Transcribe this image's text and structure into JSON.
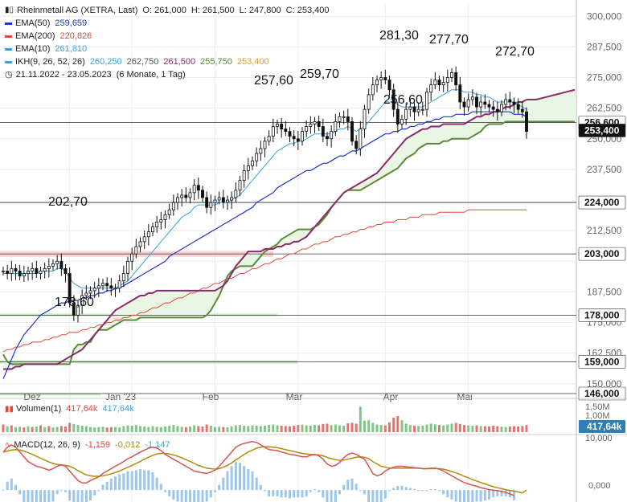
{
  "header": {
    "instrument": "Rheinmetall AG (XETRA, Last)",
    "ohlc": {
      "o": "O: 261,000",
      "h": "H: 261,500",
      "l": "L: 247,800",
      "c": "C: 253,400"
    },
    "range": "21.11.2022 - 23.05.2023",
    "period": "(6 Monate, 1 Tag)"
  },
  "indicators": [
    {
      "label": "EMA(50)",
      "value": "259,659",
      "color": "#1f36c9"
    },
    {
      "label": "EMA(200)",
      "value": "220,826",
      "color": "#e4473a"
    },
    {
      "label": "EMA(10)",
      "value": "261,810",
      "color": "#3aa0de"
    }
  ],
  "ichimoku": {
    "label": "IKH(9, 26, 52, 26)",
    "values": [
      {
        "v": "260,250",
        "color": "#3aa0de"
      },
      {
        "v": "262,750",
        "color": "#555555"
      },
      {
        "v": "261,500",
        "color": "#8b2a6b"
      },
      {
        "v": "255,750",
        "color": "#5a8a3a"
      },
      {
        "v": "253,400",
        "color": "#d7a21e"
      }
    ]
  },
  "colors": {
    "up": "#111111",
    "down": "#111111",
    "cloud_green": "#e6f4df",
    "cloud_red": "#f7dada",
    "senkouA": "#8b2a6b",
    "senkouB": "#5a8a3a",
    "chikou": "#d7a21e"
  },
  "volume": {
    "label": "Volumen(1)",
    "value1": "417,64k",
    "value2": "417,64k",
    "badge": "417,64k",
    "ticks": [
      "1,50M",
      "1,00M"
    ]
  },
  "macd": {
    "label": "MACD(12, 26, 9)",
    "v1": "-1,159",
    "v2": "-0,012",
    "v3": "-1,147",
    "ticks": [
      "10,000",
      "0,000"
    ]
  },
  "chart_data": {
    "type": "candlestick",
    "title": "Rheinmetall AG (XETRA, Last)",
    "ylim": [
      146,
      305
    ],
    "yticks": [
      "300,000",
      "287,500",
      "275,000",
      "262,500",
      "250,000",
      "237,500",
      "224,000",
      "212,500",
      "203,000",
      "187,500",
      "178,000",
      "175,000",
      "162,500",
      "159,000",
      "150,000",
      "146,000"
    ],
    "x_labels": [
      "Dez",
      "Jan '23",
      "Feb",
      "Mär",
      "Apr",
      "Mai"
    ],
    "horizontal_levels": [
      {
        "value": 256.6,
        "label": "256,600",
        "zone": false
      },
      {
        "value": 224.0,
        "label": "224,000",
        "zone": false
      },
      {
        "value": 203.0,
        "label": "203,000",
        "zone": "red"
      },
      {
        "value": 178.0,
        "label": "178,000",
        "zone": "green"
      },
      {
        "value": 159.0,
        "label": "159,000",
        "zone": "green"
      },
      {
        "value": 146.0,
        "label": "146,000",
        "zone": false
      }
    ],
    "current_price_label": "253,400",
    "annotations": [
      {
        "text": "202,70",
        "value": 202.7
      },
      {
        "text": "173,60",
        "value": 173.6
      },
      {
        "text": "257,60",
        "value": 257.6
      },
      {
        "text": "259,70",
        "value": 259.7
      },
      {
        "text": "281,30",
        "value": 281.3
      },
      {
        "text": "256,60",
        "value": 256.6
      },
      {
        "text": "277,70",
        "value": 277.7
      },
      {
        "text": "272,70",
        "value": 272.7
      }
    ],
    "close_series": [
      196,
      195,
      197,
      196,
      194,
      195,
      196,
      197,
      195,
      196,
      197,
      198,
      199,
      200,
      197,
      195,
      183,
      178,
      182,
      186,
      187,
      188,
      189,
      190,
      191,
      190,
      189,
      189,
      192,
      195,
      200,
      203,
      206,
      208,
      210,
      212,
      214,
      216,
      217,
      219,
      221,
      224,
      226,
      227,
      226,
      228,
      231,
      229,
      226,
      222,
      224,
      225,
      226,
      224,
      225,
      226,
      229,
      233,
      237,
      239,
      241,
      244,
      246,
      249,
      251,
      255,
      256,
      254,
      253,
      251,
      250,
      249,
      253,
      255,
      256,
      257,
      255,
      251,
      250,
      253,
      257,
      259,
      259,
      257,
      249,
      246,
      254,
      262,
      268,
      272,
      274,
      275,
      274,
      270,
      262,
      256,
      258,
      262,
      263,
      261,
      262,
      262,
      269,
      272,
      274,
      272,
      273,
      275,
      277,
      272,
      265,
      263,
      266,
      267,
      263,
      265,
      264,
      263,
      262,
      261,
      264,
      266,
      265,
      264,
      262,
      261,
      253
    ],
    "ema10_series": [
      195,
      195,
      195,
      195,
      195,
      195,
      195,
      195,
      195,
      196,
      196,
      196,
      196,
      197,
      197,
      196,
      193,
      191,
      190,
      189,
      189,
      189,
      189,
      189,
      189,
      189,
      189,
      189,
      190,
      191,
      192,
      194,
      196,
      198,
      200,
      202,
      204,
      206,
      208,
      210,
      212,
      214,
      216,
      218,
      219,
      220,
      222,
      223,
      223,
      223,
      223,
      223,
      224,
      224,
      224,
      225,
      226,
      227,
      229,
      231,
      233,
      235,
      237,
      239,
      241,
      243,
      245,
      246,
      247,
      248,
      248,
      249,
      249,
      250,
      251,
      252,
      252,
      252,
      252,
      252,
      253,
      254,
      254,
      255,
      254,
      253,
      254,
      255,
      257,
      259,
      261,
      263,
      265,
      265,
      265,
      264,
      263,
      263,
      263,
      263,
      263,
      263,
      264,
      265,
      266,
      267,
      268,
      269,
      270,
      270,
      270,
      269,
      269,
      269,
      268,
      268,
      267,
      267,
      266,
      265,
      265,
      265,
      265,
      265,
      264,
      263,
      262
    ],
    "ema50_series": [
      152,
      156,
      160,
      164,
      167,
      170,
      172,
      174,
      176,
      178,
      179,
      180,
      181,
      182,
      183,
      183,
      184,
      184,
      184,
      185,
      185,
      186,
      186,
      187,
      187,
      188,
      188,
      189,
      189,
      190,
      191,
      192,
      193,
      194,
      195,
      196,
      197,
      198,
      199,
      200,
      202,
      203,
      204,
      205,
      206,
      207,
      208,
      209,
      210,
      211,
      212,
      213,
      214,
      215,
      216,
      217,
      218,
      219,
      220,
      221,
      222,
      224,
      225,
      226,
      227,
      228,
      230,
      231,
      232,
      233,
      234,
      235,
      236,
      237,
      237,
      238,
      239,
      240,
      240,
      241,
      242,
      243,
      243,
      244,
      245,
      245,
      246,
      247,
      248,
      249,
      250,
      251,
      252,
      252,
      253,
      253,
      254,
      254,
      255,
      255,
      256,
      256,
      257,
      257,
      258,
      258,
      259,
      259,
      259,
      260,
      260,
      260,
      260,
      261,
      261,
      261,
      261,
      261,
      261,
      261,
      261,
      261,
      261,
      260,
      260,
      260,
      259
    ],
    "ema200_series": [
      163,
      164,
      164,
      165,
      165,
      166,
      166,
      167,
      167,
      167,
      168,
      168,
      169,
      169,
      170,
      170,
      171,
      171,
      171,
      172,
      172,
      173,
      173,
      174,
      174,
      175,
      175,
      176,
      176,
      177,
      177,
      178,
      178,
      179,
      179,
      180,
      181,
      181,
      182,
      183,
      183,
      184,
      185,
      185,
      186,
      187,
      187,
      188,
      189,
      189,
      190,
      191,
      191,
      192,
      193,
      193,
      194,
      195,
      195,
      196,
      197,
      197,
      198,
      199,
      199,
      200,
      201,
      201,
      202,
      203,
      203,
      204,
      205,
      205,
      206,
      207,
      207,
      208,
      208,
      209,
      210,
      210,
      211,
      211,
      212,
      212,
      213,
      213,
      214,
      214,
      215,
      215,
      216,
      216,
      216,
      217,
      217,
      217,
      218,
      218,
      218,
      219,
      219,
      219,
      219,
      220,
      220,
      220,
      220,
      220,
      220,
      220,
      221,
      221,
      221,
      221,
      221,
      221,
      221,
      221,
      221,
      221,
      221,
      221,
      221,
      221,
      221
    ],
    "senkouA_series": [
      156,
      156,
      156,
      157,
      157,
      158,
      158,
      158,
      158,
      158,
      158,
      158,
      158,
      158,
      159,
      160,
      161,
      162,
      163,
      164,
      166,
      168,
      170,
      172,
      174,
      176,
      178,
      180,
      181,
      182,
      183,
      184,
      185,
      186,
      186,
      187,
      187,
      188,
      188,
      188,
      188,
      188,
      188,
      188,
      188,
      188,
      188,
      188,
      188,
      188,
      188,
      188,
      189,
      190,
      192,
      195,
      198,
      200,
      202,
      204,
      204,
      204,
      204,
      205,
      205,
      205,
      206,
      206,
      207,
      207,
      208,
      208,
      209,
      210,
      212,
      214,
      216,
      218,
      220,
      222,
      224,
      226,
      228,
      229,
      230,
      231,
      232,
      233,
      234,
      235,
      236,
      238,
      240,
      242,
      244,
      246,
      248,
      250,
      251,
      252,
      253,
      254,
      254,
      255,
      255,
      255,
      256,
      256,
      256,
      256,
      256,
      256,
      257,
      258,
      259,
      259,
      260,
      260,
      261,
      261,
      262,
      263,
      263,
      264,
      265,
      265,
      266
    ],
    "senkouB_series": [
      162,
      159,
      158,
      158,
      158,
      158,
      158,
      158,
      158,
      158,
      158,
      158,
      158,
      158,
      158,
      158,
      158,
      164,
      166,
      166,
      167,
      167,
      170,
      172,
      172,
      172,
      173,
      174,
      175,
      176,
      176,
      176,
      176,
      177,
      177,
      177,
      177,
      177,
      177,
      177,
      177,
      177,
      177,
      177,
      177,
      177,
      177,
      177,
      177,
      178,
      180,
      183,
      186,
      190,
      194,
      196,
      197,
      198,
      198,
      198,
      198,
      200,
      202,
      204,
      205,
      206,
      207,
      209,
      210,
      211,
      212,
      213,
      213,
      213,
      213,
      214,
      215,
      217,
      219,
      222,
      224,
      226,
      228,
      229,
      229,
      229,
      229,
      230,
      231,
      232,
      233,
      234,
      235,
      236,
      237,
      238,
      240,
      242,
      243,
      244,
      246,
      247,
      248,
      248,
      248,
      248,
      249,
      249,
      250,
      250,
      250,
      250,
      250,
      251,
      252,
      253,
      255,
      256,
      256,
      256,
      256,
      257,
      257,
      257,
      257,
      257,
      257
    ]
  },
  "volume_data": {
    "ymax": 1.8,
    "values": [
      0.45,
      0.35,
      0.4,
      0.3,
      0.32,
      0.28,
      0.35,
      0.3,
      0.33,
      0.4,
      0.3,
      0.35,
      0.28,
      0.3,
      0.36,
      0.33,
      0.55,
      0.48,
      0.42,
      0.38,
      0.35,
      0.3,
      0.28,
      0.3,
      0.32,
      0.27,
      0.3,
      0.3,
      0.28,
      0.35,
      0.4,
      0.38,
      0.42,
      0.36,
      0.33,
      0.3,
      0.35,
      0.32,
      0.3,
      0.34,
      0.38,
      0.42,
      0.36,
      0.32,
      0.3,
      0.34,
      0.4,
      0.36,
      0.33,
      0.45,
      0.38,
      0.3,
      0.32,
      0.3,
      0.28,
      0.35,
      0.4,
      0.42,
      0.38,
      0.36,
      0.4,
      0.38,
      0.35,
      0.38,
      0.42,
      0.45,
      0.4,
      0.38,
      0.36,
      0.35,
      0.38,
      0.42,
      0.44,
      0.4,
      0.38,
      0.42,
      0.4,
      0.48,
      0.5,
      0.42,
      0.45,
      0.4,
      0.38,
      0.52,
      0.55,
      0.5,
      1.5,
      0.68,
      0.7,
      0.55,
      0.45,
      0.42,
      0.4,
      0.58,
      0.85,
      0.95,
      0.7,
      0.5,
      0.42,
      0.38,
      0.36,
      0.38,
      0.45,
      0.5,
      0.46,
      0.42,
      0.4,
      0.45,
      0.5,
      0.55,
      0.48,
      0.42,
      0.4,
      0.38,
      0.4,
      0.36,
      0.35,
      0.34,
      0.38,
      0.35,
      0.32,
      0.3,
      0.33,
      0.35,
      0.34,
      0.36,
      0.42
    ],
    "down": [
      1,
      0,
      1,
      0,
      0,
      1,
      0,
      1,
      0,
      1,
      0,
      1,
      0,
      0,
      1,
      1,
      1,
      0,
      0,
      0,
      0,
      0,
      0,
      0,
      0,
      1,
      1,
      0,
      0,
      0,
      0,
      0,
      0,
      0,
      0,
      0,
      0,
      0,
      0,
      0,
      0,
      0,
      0,
      0,
      1,
      0,
      0,
      1,
      1,
      1,
      0,
      0,
      0,
      1,
      0,
      0,
      0,
      0,
      0,
      0,
      0,
      0,
      0,
      0,
      0,
      0,
      0,
      1,
      1,
      1,
      1,
      1,
      0,
      0,
      0,
      0,
      1,
      1,
      1,
      0,
      0,
      0,
      0,
      1,
      1,
      1,
      0,
      0,
      0,
      0,
      0,
      0,
      1,
      1,
      1,
      1,
      0,
      0,
      0,
      1,
      0,
      0,
      0,
      0,
      0,
      1,
      0,
      0,
      0,
      1,
      1,
      1,
      0,
      0,
      1,
      0,
      1,
      1,
      1,
      1,
      0,
      0,
      1,
      1,
      1,
      1,
      1
    ]
  },
  "macd_data": {
    "ylim": [
      -2,
      11
    ],
    "macd": [
      8,
      9,
      9.5,
      9,
      8,
      7,
      6,
      5.5,
      5,
      4.8,
      4.5,
      4.2,
      4.5,
      5,
      5.3,
      5,
      4,
      3,
      2,
      1.5,
      1.5,
      2,
      2.4,
      2.8,
      3.5,
      4,
      4.5,
      5,
      5.5,
      6,
      6.6,
      7,
      7.5,
      8,
      8.4,
      8.8,
      9,
      8.8,
      8.3,
      7.5,
      7,
      6.5,
      6,
      5.5,
      5,
      4.5,
      4,
      3.8,
      3.6,
      3.5,
      3.8,
      4.2,
      5,
      6,
      7,
      8,
      9,
      9.5,
      9.8,
      10,
      10.2,
      10,
      9.5,
      9,
      8.5,
      8.4,
      8.3,
      8,
      7.8,
      7.5,
      7.4,
      7.2,
      7,
      7,
      7.3,
      7.5,
      7.2,
      6.5,
      5.5,
      5,
      5.2,
      5.8,
      6.8,
      7.5,
      7.8,
      7.5,
      7,
      6.5,
      5,
      3.5,
      3,
      3.3,
      4,
      4.5,
      4.8,
      5,
      5,
      4.9,
      4.8,
      4.7,
      4.6,
      4.5,
      4.5,
      4.6,
      4.6,
      4.4,
      4,
      3.5,
      3,
      2.5,
      2,
      1.6,
      1.3,
      1,
      0.8,
      0.5,
      0.3,
      0.1,
      0,
      -0.1,
      -0.3,
      -0.5,
      -0.8,
      -1.159
    ],
    "signal": [
      8,
      8.2,
      8.4,
      8.5,
      8.4,
      8.2,
      7.9,
      7.5,
      7.1,
      6.7,
      6.3,
      5.9,
      5.6,
      5.4,
      5.3,
      5.2,
      5,
      4.6,
      4.1,
      3.6,
      3.2,
      3,
      2.9,
      2.9,
      3,
      3.2,
      3.4,
      3.7,
      4,
      4.4,
      4.8,
      5.2,
      5.6,
      6,
      6.5,
      6.9,
      7.3,
      7.6,
      7.7,
      7.7,
      7.6,
      7.4,
      7.1,
      6.8,
      6.4,
      6,
      5.6,
      5.2,
      4.9,
      4.6,
      4.5,
      4.4,
      4.5,
      4.8,
      5.2,
      5.7,
      6.3,
      6.9,
      7.5,
      8,
      8.4,
      8.8,
      9,
      9.1,
      9.1,
      9,
      8.9,
      8.7,
      8.5,
      8.3,
      8.1,
      7.9,
      7.7,
      7.6,
      7.5,
      7.4,
      7.4,
      7.2,
      6.9,
      6.6,
      6.4,
      6.2,
      6.3,
      6.5,
      6.7,
      6.9,
      7,
      6.9,
      6.6,
      6,
      5.5,
      5,
      4.8,
      4.6,
      4.6,
      4.6,
      4.6,
      4.6,
      4.6,
      4.6,
      4.6,
      4.5,
      4.5,
      4.5,
      4.5,
      4.5,
      4.4,
      4.2,
      3.9,
      3.6,
      3.3,
      2.9,
      2.6,
      2.2,
      1.9,
      1.6,
      1.3,
      1,
      0.7,
      0.5,
      0.3,
      0.1,
      -0.1,
      -0.2,
      -0.4,
      -0.6,
      -0.012
    ]
  }
}
